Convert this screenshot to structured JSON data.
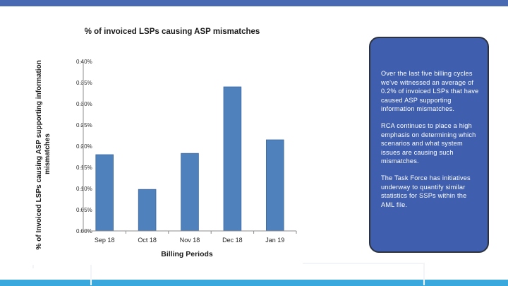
{
  "colors": {
    "bar": "#4f81bd",
    "bar_edge": "#3c679e",
    "top_bar": "#4a69b3",
    "bottom_bar": "#3aa7dd",
    "callout_fill": "#3f5fae",
    "callout_text": "#ffffff"
  },
  "chart_data": {
    "type": "bar",
    "title": "% of invoiced LSPs causing ASP mismatches",
    "xlabel": "Billing Periods",
    "ylabel": "% of Invoiced LSPs causing ASP supporting information mismatches",
    "categories": [
      "Sep 18",
      "Oct 18",
      "Nov 18",
      "Dec 18",
      "Jan 19"
    ],
    "values": [
      0.18,
      0.098,
      0.183,
      0.34,
      0.215
    ],
    "ylim": [
      0,
      0.4
    ],
    "yticks": [
      0,
      0.05,
      0.1,
      0.15,
      0.2,
      0.25,
      0.3,
      0.35,
      0.4
    ],
    "ytick_labels": [
      "0.00%",
      "0.05%",
      "0.10%",
      "0.15%",
      "0.20%",
      "0.25%",
      "0.30%",
      "0.35%",
      "0.40%"
    ],
    "grid": false,
    "legend": "none"
  },
  "callout": {
    "paragraphs": [
      "Over the last five billing cycles we've witnessed an average of 0.2% of invoiced LSPs that have caused ASP supporting information mismatches.",
      "RCA continues to place a high emphasis on determining which scenarios and what system issues are causing such mismatches.",
      "The Task Force has initiatives underway to quantify similar statistics for SSPs within the AML file."
    ]
  }
}
